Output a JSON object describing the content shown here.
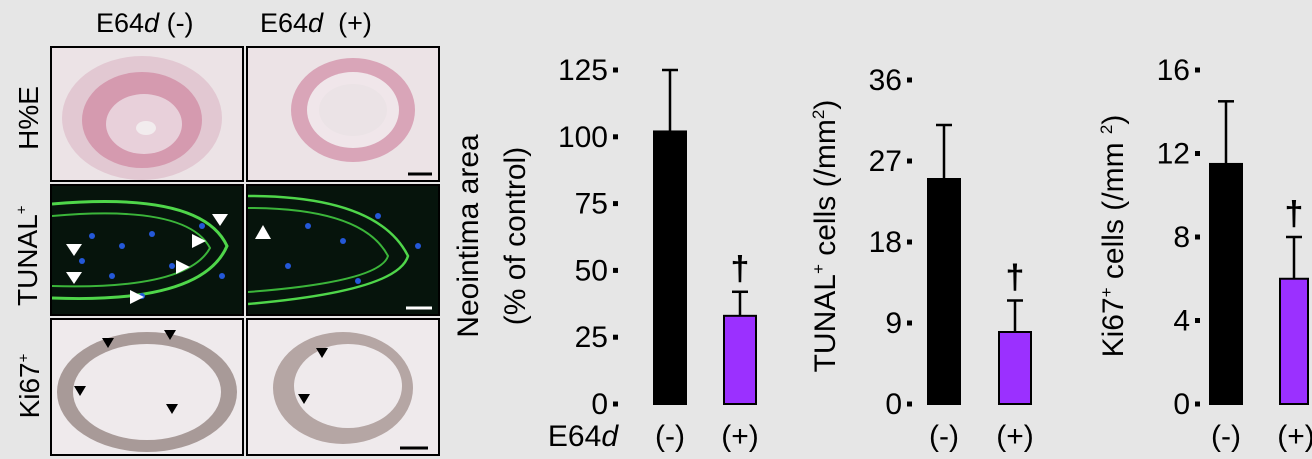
{
  "micrographs": {
    "col_headers": [
      "E64d (-)",
      "E64d  (+)"
    ],
    "row_labels": [
      "H%E",
      "TUNAL+",
      "Ki67+"
    ],
    "colors": {
      "he_bg": "#ece3e6",
      "he_tissue": "#d59aaf",
      "tunel_bg": "#06140c",
      "tunel_green": "#4fd64a",
      "tunel_nuclei": "#2458d8",
      "ki67_bg": "#efeaec",
      "ki67_tissue": "#a89a98"
    }
  },
  "chart_data": [
    {
      "type": "bar",
      "categories": [
        "(-)",
        "(+)"
      ],
      "values": [
        102,
        33
      ],
      "errors": [
        23,
        9
      ],
      "ylabel": "Neointima area (% of control)",
      "ylabel_lines": [
        "Neointima area",
        "(% of control)"
      ],
      "ylim": [
        0,
        125
      ],
      "yticks": [
        0,
        25,
        50,
        75,
        100,
        125
      ],
      "x_axis_name": "E64d",
      "colors": [
        "#000000",
        "#9b30ff"
      ],
      "annotations": [
        {
          "text": "†",
          "category": "(+)"
        }
      ]
    },
    {
      "type": "bar",
      "categories": [
        "(-)",
        "(+)"
      ],
      "values": [
        25,
        8
      ],
      "errors": [
        6,
        3.5
      ],
      "ylabel": "TUNAL+ cells (/mm2)",
      "ylabel_parts": {
        "main": "TUNAL",
        "sup1": "+",
        "mid": " cells (/mm",
        "sup2": "2",
        "end": ")"
      },
      "ylim": [
        0,
        36
      ],
      "yticks": [
        0,
        9,
        18,
        27,
        36
      ],
      "colors": [
        "#000000",
        "#9b30ff"
      ],
      "annotations": [
        {
          "text": "†",
          "category": "(+)"
        }
      ]
    },
    {
      "type": "bar",
      "categories": [
        "(-)",
        "(+)"
      ],
      "values": [
        11.5,
        6
      ],
      "errors": [
        3,
        2
      ],
      "ylabel": "Ki67+ cells (/mm 2)",
      "ylabel_parts": {
        "main": "Ki67",
        "sup1": "+",
        "mid": " cells (/mm ",
        "sup2": "2",
        "end": ")"
      },
      "ylim": [
        0,
        16
      ],
      "yticks": [
        0,
        4,
        8,
        12,
        16
      ],
      "colors": [
        "#000000",
        "#9b30ff"
      ],
      "annotations": [
        {
          "text": "†",
          "category": "(+)"
        }
      ]
    }
  ]
}
